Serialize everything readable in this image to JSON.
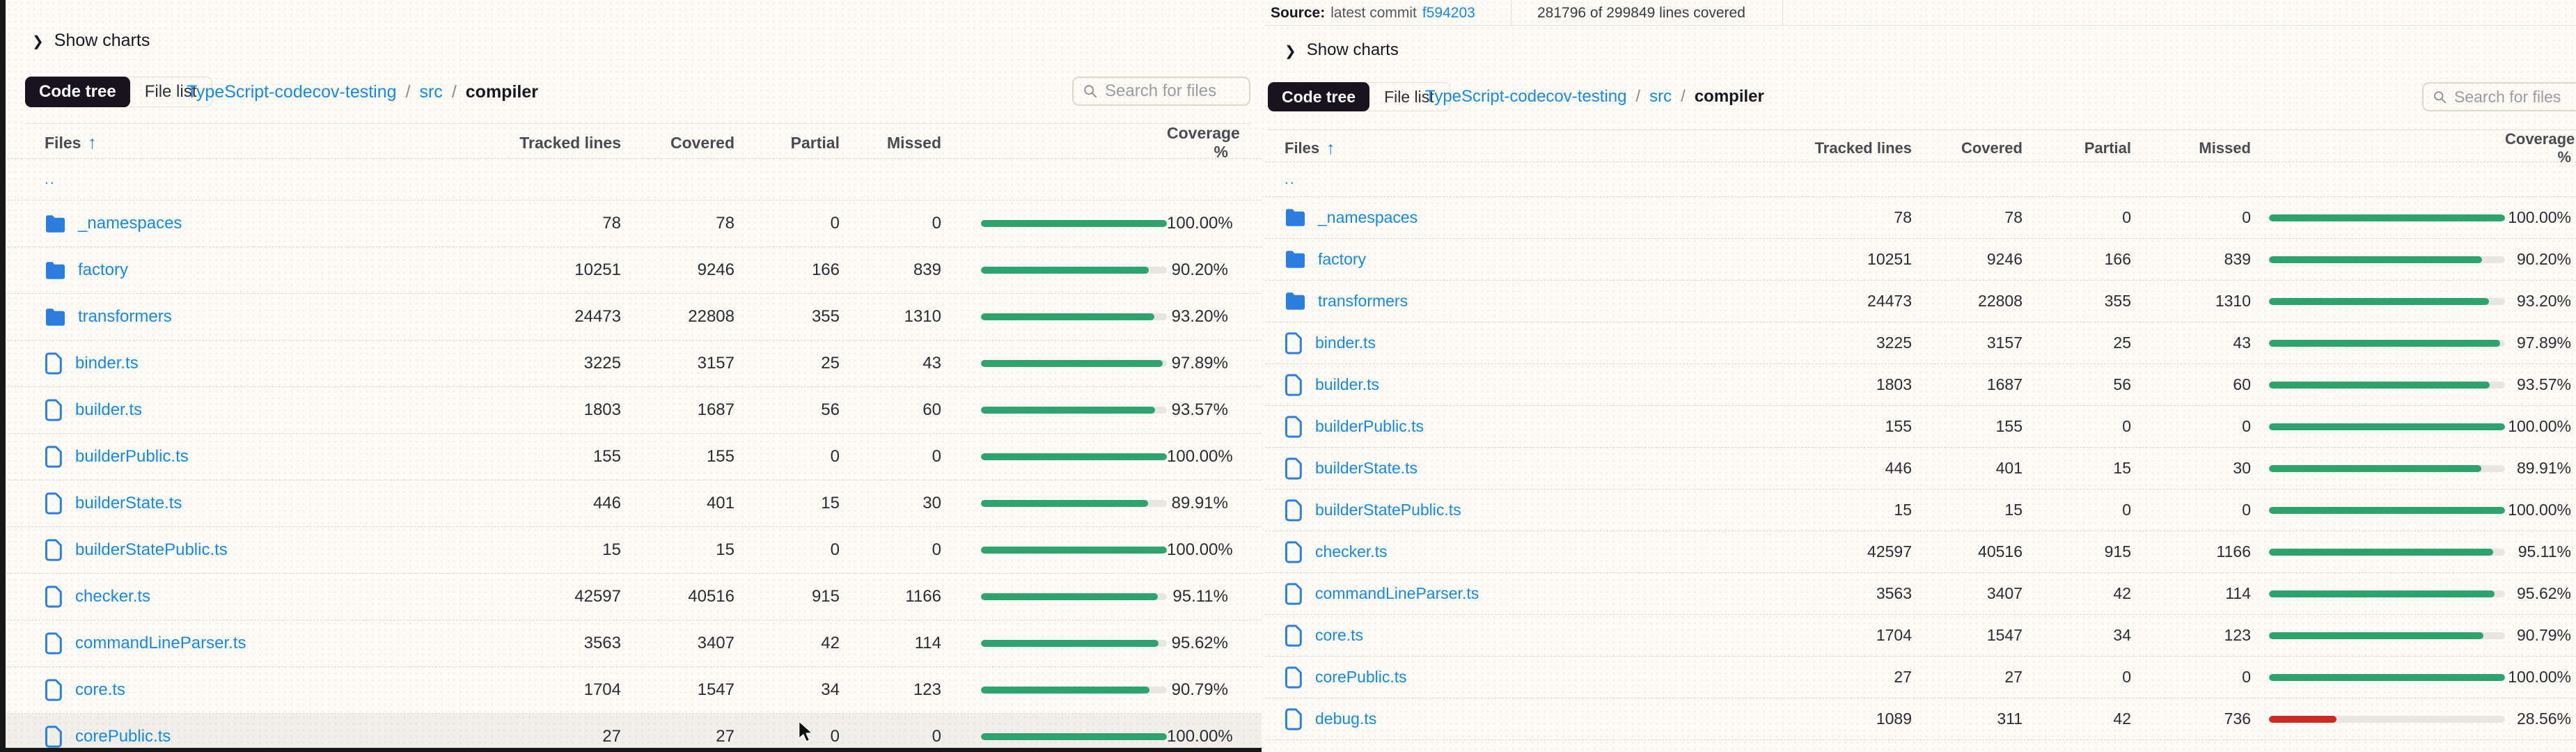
{
  "theme": {
    "link_blue": "#1787e8",
    "icon_blue": "#2b7de0",
    "bar_green": "#2ea36e",
    "bar_red": "#cd2a21",
    "pill_bg": "#17141f"
  },
  "shared": {
    "show_charts_label": "Show charts",
    "tabs": {
      "code_tree": "Code tree",
      "file_list": "File list"
    },
    "breadcrumb": {
      "repo": "TypeScript-codecov-testing",
      "sep": "/",
      "src": "src",
      "current": "compiler"
    },
    "search_placeholder": "Search for files",
    "table_header": {
      "files": "Files",
      "tracked": "Tracked lines",
      "covered": "Covered",
      "partial": "Partial",
      "missed": "Missed",
      "coverage": "Coverage %"
    },
    "parent_dir_label": ".."
  },
  "right_top_bar": {
    "source_label": "Source:",
    "source_text": "latest commit",
    "commit_link": "f594203",
    "coverage_summary": "281796 of 299849 lines covered"
  },
  "panels": {
    "left": {
      "rows": [
        {
          "type": "folder",
          "name": "_namespaces",
          "tracked": "78",
          "covered": "78",
          "partial": "0",
          "missed": "0",
          "coverage": "100.00%",
          "pct": 100
        },
        {
          "type": "folder",
          "name": "factory",
          "tracked": "10251",
          "covered": "9246",
          "partial": "166",
          "missed": "839",
          "coverage": "90.20%",
          "pct": 90.2
        },
        {
          "type": "folder",
          "name": "transformers",
          "tracked": "24473",
          "covered": "22808",
          "partial": "355",
          "missed": "1310",
          "coverage": "93.20%",
          "pct": 93.2
        },
        {
          "type": "file",
          "name": "binder.ts",
          "tracked": "3225",
          "covered": "3157",
          "partial": "25",
          "missed": "43",
          "coverage": "97.89%",
          "pct": 97.89
        },
        {
          "type": "file",
          "name": "builder.ts",
          "tracked": "1803",
          "covered": "1687",
          "partial": "56",
          "missed": "60",
          "coverage": "93.57%",
          "pct": 93.57
        },
        {
          "type": "file",
          "name": "builderPublic.ts",
          "tracked": "155",
          "covered": "155",
          "partial": "0",
          "missed": "0",
          "coverage": "100.00%",
          "pct": 100
        },
        {
          "type": "file",
          "name": "builderState.ts",
          "tracked": "446",
          "covered": "401",
          "partial": "15",
          "missed": "30",
          "coverage": "89.91%",
          "pct": 89.91
        },
        {
          "type": "file",
          "name": "builderStatePublic.ts",
          "tracked": "15",
          "covered": "15",
          "partial": "0",
          "missed": "0",
          "coverage": "100.00%",
          "pct": 100
        },
        {
          "type": "file",
          "name": "checker.ts",
          "tracked": "42597",
          "covered": "40516",
          "partial": "915",
          "missed": "1166",
          "coverage": "95.11%",
          "pct": 95.11
        },
        {
          "type": "file",
          "name": "commandLineParser.ts",
          "tracked": "3563",
          "covered": "3407",
          "partial": "42",
          "missed": "114",
          "coverage": "95.62%",
          "pct": 95.62
        },
        {
          "type": "file",
          "name": "core.ts",
          "tracked": "1704",
          "covered": "1547",
          "partial": "34",
          "missed": "123",
          "coverage": "90.79%",
          "pct": 90.79
        },
        {
          "type": "file",
          "name": "corePublic.ts",
          "tracked": "27",
          "covered": "27",
          "partial": "0",
          "missed": "0",
          "coverage": "100.00%",
          "pct": 100,
          "hovered": true
        }
      ]
    },
    "right": {
      "rows": [
        {
          "type": "folder",
          "name": "_namespaces",
          "tracked": "78",
          "covered": "78",
          "partial": "0",
          "missed": "0",
          "coverage": "100.00%",
          "pct": 100
        },
        {
          "type": "folder",
          "name": "factory",
          "tracked": "10251",
          "covered": "9246",
          "partial": "166",
          "missed": "839",
          "coverage": "90.20%",
          "pct": 90.2
        },
        {
          "type": "folder",
          "name": "transformers",
          "tracked": "24473",
          "covered": "22808",
          "partial": "355",
          "missed": "1310",
          "coverage": "93.20%",
          "pct": 93.2
        },
        {
          "type": "file",
          "name": "binder.ts",
          "tracked": "3225",
          "covered": "3157",
          "partial": "25",
          "missed": "43",
          "coverage": "97.89%",
          "pct": 97.89
        },
        {
          "type": "file",
          "name": "builder.ts",
          "tracked": "1803",
          "covered": "1687",
          "partial": "56",
          "missed": "60",
          "coverage": "93.57%",
          "pct": 93.57
        },
        {
          "type": "file",
          "name": "builderPublic.ts",
          "tracked": "155",
          "covered": "155",
          "partial": "0",
          "missed": "0",
          "coverage": "100.00%",
          "pct": 100
        },
        {
          "type": "file",
          "name": "builderState.ts",
          "tracked": "446",
          "covered": "401",
          "partial": "15",
          "missed": "30",
          "coverage": "89.91%",
          "pct": 89.91
        },
        {
          "type": "file",
          "name": "builderStatePublic.ts",
          "tracked": "15",
          "covered": "15",
          "partial": "0",
          "missed": "0",
          "coverage": "100.00%",
          "pct": 100
        },
        {
          "type": "file",
          "name": "checker.ts",
          "tracked": "42597",
          "covered": "40516",
          "partial": "915",
          "missed": "1166",
          "coverage": "95.11%",
          "pct": 95.11
        },
        {
          "type": "file",
          "name": "commandLineParser.ts",
          "tracked": "3563",
          "covered": "3407",
          "partial": "42",
          "missed": "114",
          "coverage": "95.62%",
          "pct": 95.62
        },
        {
          "type": "file",
          "name": "core.ts",
          "tracked": "1704",
          "covered": "1547",
          "partial": "34",
          "missed": "123",
          "coverage": "90.79%",
          "pct": 90.79
        },
        {
          "type": "file",
          "name": "corePublic.ts",
          "tracked": "27",
          "covered": "27",
          "partial": "0",
          "missed": "0",
          "coverage": "100.00%",
          "pct": 100
        },
        {
          "type": "file",
          "name": "debug.ts",
          "tracked": "1089",
          "covered": "311",
          "partial": "42",
          "missed": "736",
          "coverage": "28.56%",
          "pct": 28.56
        }
      ]
    }
  }
}
